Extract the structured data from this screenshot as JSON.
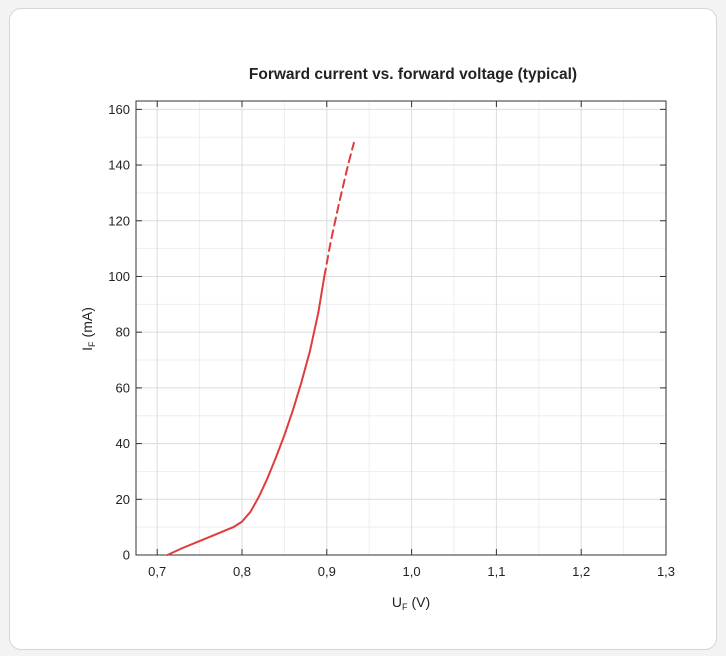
{
  "chart_data": {
    "type": "line",
    "title": "Forward current vs. forward voltage (typical)",
    "xlabel": {
      "main": "U",
      "sub": "F",
      "unit": "(V)"
    },
    "ylabel": {
      "main": "I",
      "sub": "F",
      "unit": "(mA)"
    },
    "xlim": [
      0.675,
      1.3
    ],
    "ylim": [
      0,
      163
    ],
    "x_ticks": [
      0.7,
      0.8,
      0.9,
      1.0,
      1.1,
      1.2,
      1.3
    ],
    "x_tick_labels": [
      "0,7",
      "0,8",
      "0,9",
      "1,0",
      "1,1",
      "1,2",
      "1,3"
    ],
    "y_ticks": [
      0,
      20,
      40,
      60,
      80,
      100,
      120,
      140,
      160
    ],
    "y_tick_labels": [
      "0",
      "20",
      "40",
      "60",
      "80",
      "100",
      "120",
      "140",
      "160"
    ],
    "grid": true,
    "legend": "none",
    "series": [
      {
        "style": "solid",
        "color": "#e03c3c",
        "x": [
          0.712,
          0.73,
          0.75,
          0.77,
          0.79,
          0.8,
          0.81,
          0.82,
          0.83,
          0.84,
          0.85,
          0.86,
          0.87,
          0.88,
          0.89,
          0.897
        ],
        "y": [
          0,
          2.5,
          5,
          7.5,
          10,
          12,
          15.5,
          21,
          27.5,
          35,
          43,
          52,
          62,
          73,
          87,
          100
        ]
      },
      {
        "style": "dashed",
        "color": "#e03c3c",
        "x": [
          0.897,
          0.905,
          0.915,
          0.925,
          0.932
        ],
        "y": [
          100,
          113,
          127,
          140,
          148
        ]
      }
    ]
  }
}
